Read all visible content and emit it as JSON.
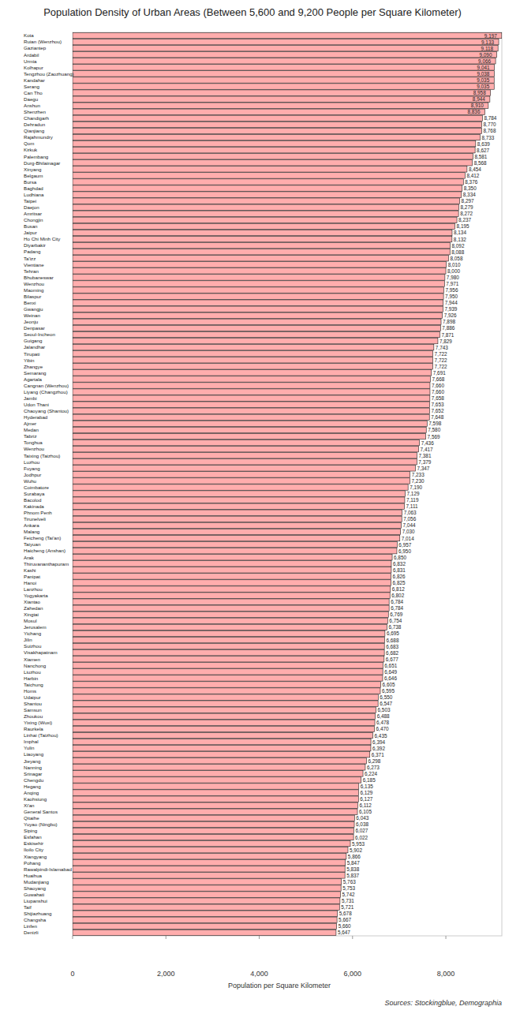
{
  "chart_data": {
    "type": "bar",
    "orientation": "horizontal",
    "title": "Population Density of Urban Areas (Between 5,600 and 9,200 People per Square Kilometer)",
    "x_label": "Population per Square Kilometer",
    "source": "Sources: Stockingblue, Demographia",
    "color": "#ffadad",
    "grid": false,
    "data_labels": true,
    "xlim": [
      0,
      9200
    ],
    "xticks": [
      0,
      {
        "value": 2000,
        "label": "2,000"
      },
      {
        "value": 4000,
        "label": "4,000"
      },
      {
        "value": 6000,
        "label": "6,000"
      },
      {
        "value": 8000,
        "label": "8,000"
      }
    ],
    "categories": [
      "Kota",
      "Ruian (Wenzhou)",
      "Gaziantep",
      "Ardabil",
      "Urmia",
      "Kolhapur",
      "Tengzhou (Zaozhuang)",
      "Kandahar",
      "Serang",
      "Can Tho",
      "Daegu",
      "Anshun",
      "Shenzhen",
      "Chandigarh",
      "Dehradun",
      "Qianjiang",
      "Rajahmundry",
      "Qom",
      "Kirkuk",
      "Palembang",
      "Durg-Bhilainagar",
      "Xinyang",
      "Belgaum",
      "Bursa",
      "Baghdad",
      "Ludhiana",
      "Taipei",
      "Daejon",
      "Amritsar",
      "Chongjin",
      "Busan",
      "Jaipur",
      "Ho Chi Minh City",
      "Diyarbakir",
      "Padang",
      "Ta'izz",
      "Vientiane",
      "Tehran",
      "Bhubaneswar",
      "Wenzhou",
      "Maoming",
      "Bilaspur",
      "Benxi",
      "Gwangju",
      "Weinan",
      "Jeonju",
      "Denpasar",
      "Seoul-Incheon",
      "Guigang",
      "Jalandhar",
      "Tirupati",
      "Yibin",
      "Zhangye",
      "Semarang",
      "Agartala",
      "Cangnan (Wenzhou)",
      "Liyang (Changzhou)",
      "Jambi",
      "Udon Thani",
      "Chaoyang (Shantou)",
      "Hyderabad",
      "Ajmer",
      "Medan",
      "Tabriz",
      "Tonghua",
      "Wenzhou",
      "Taixing (Taizhou)",
      "Luzhou",
      "Fuyang",
      "Jodhpur",
      "Wuhu",
      "Coimbatore",
      "Surabaya",
      "Bacolod",
      "Kakinada",
      "Phnom Penh",
      "Tirunelveli",
      "Ankara",
      "Malang",
      "Feicheng (Tai'an)",
      "Taiyuan",
      "Haicheng (Anshan)",
      "Arak",
      "Thiruvananthapuram",
      "Kashi",
      "Panipat",
      "Hanoi",
      "Lanzhou",
      "Yogyakarta",
      "Xiantao",
      "Zahedan",
      "Xingtai",
      "Mosul",
      "Jerusalem",
      "Yichang",
      "Jilin",
      "Suizhou",
      "Visakhapatnam",
      "Xiamen",
      "Nanchong",
      "Liuzhou",
      "Harbin",
      "Taichung",
      "Homs",
      "Udaipur",
      "Shantou",
      "Samsun",
      "Zhoukou",
      "Yixing (Wuxi)",
      "Raurkela",
      "Linhai (Taizhou)",
      "Imphal",
      "Yulin",
      "Liaoyang",
      "Jieyang",
      "Nanning",
      "Srinagar",
      "Chengdu",
      "Hegang",
      "Anqing",
      "Kaohsiung",
      "Xi'an",
      "General Santos",
      "Qitaihe",
      "Yuyao (Ningbo)",
      "Siping",
      "Esfahan",
      "Eskisehir",
      "Iloilo City",
      "Xiangyang",
      "Pohang",
      "Rawalpindi-Islamabad",
      "Huaihua",
      "Mudanjiang",
      "Shaoyang",
      "Guwahati",
      "Liupanshui",
      "Taif",
      "Shijiazhuang",
      "Changsha",
      "Linfen",
      "Denizli"
    ],
    "values": [
      9197,
      9133,
      9118,
      9090,
      9066,
      9041,
      9038,
      9035,
      9035,
      8958,
      8944,
      8910,
      8836,
      8784,
      8770,
      8768,
      8733,
      8639,
      8627,
      8581,
      8568,
      8454,
      8412,
      8376,
      8350,
      8334,
      8297,
      8279,
      8272,
      8237,
      8195,
      8134,
      8132,
      8092,
      8088,
      8058,
      8010,
      8000,
      7980,
      7971,
      7956,
      7950,
      7944,
      7939,
      7926,
      7898,
      7886,
      7871,
      7829,
      7743,
      7722,
      7722,
      7722,
      7691,
      7668,
      7660,
      7660,
      7658,
      7653,
      7652,
      7648,
      7598,
      7580,
      7569,
      7436,
      7417,
      7381,
      7379,
      7347,
      7233,
      7230,
      7190,
      7129,
      7119,
      7111,
      7063,
      7056,
      7044,
      7030,
      7014,
      6957,
      6950,
      6850,
      6832,
      6831,
      6826,
      6825,
      6812,
      6802,
      6784,
      6784,
      6769,
      6754,
      6738,
      6695,
      6688,
      6683,
      6682,
      6677,
      6651,
      6649,
      6646,
      6605,
      6595,
      6550,
      6547,
      6503,
      6488,
      6478,
      6470,
      6435,
      6394,
      6392,
      6371,
      6298,
      6273,
      6224,
      6185,
      6135,
      6129,
      6127,
      6112,
      6105,
      6043,
      6038,
      6027,
      6022,
      5953,
      5902,
      5866,
      5847,
      5838,
      5837,
      5763,
      5753,
      5742,
      5731,
      5721,
      5678,
      5667,
      5660,
      5647
    ],
    "value_labels": [
      "9,197",
      "9,133",
      "9,118",
      "9,090",
      "9,066",
      "9,041",
      "9,038",
      "9,035",
      "9,035",
      "8,958",
      "8,944",
      "8,910",
      "8,836",
      "8,784",
      "8,770",
      "8,768",
      "8,733",
      "8,639",
      "8,627",
      "8,581",
      "8,568",
      "8,454",
      "8,412",
      "8,376",
      "8,350",
      "8,334",
      "8,297",
      "8,279",
      "8,272",
      "8,237",
      "8,195",
      "8,134",
      "8,132",
      "8,092",
      "8,088",
      "8,058",
      "8,010",
      "8,000",
      "7,980",
      "7,971",
      "7,956",
      "7,950",
      "7,944",
      "7,939",
      "7,926",
      "7,898",
      "7,886",
      "7,871",
      "7,829",
      "7,743",
      "7,722",
      "7,722",
      "7,722",
      "7,691",
      "7,668",
      "7,660",
      "7,660",
      "7,658",
      "7,653",
      "7,652",
      "7,648",
      "7,598",
      "7,580",
      "7,569",
      "7,436",
      "7,417",
      "7,381",
      "7,379",
      "7,347",
      "7,233",
      "7,230",
      "7,190",
      "7,129",
      "7,119",
      "7,111",
      "7,063",
      "7,056",
      "7,044",
      "7,030",
      "7,014",
      "6,957",
      "6,950",
      "6,850",
      "6,832",
      "6,831",
      "6,826",
      "6,825",
      "6,812",
      "6,802",
      "6,784",
      "6,784",
      "6,769",
      "6,754",
      "6,738",
      "6,695",
      "6,688",
      "6,683",
      "6,682",
      "6,677",
      "6,651",
      "6,649",
      "6,646",
      "6,605",
      "6,595",
      "6,550",
      "6,547",
      "6,503",
      "6,488",
      "6,478",
      "6,470",
      "6,435",
      "6,394",
      "6,392",
      "6,371",
      "6,298",
      "6,273",
      "6,224",
      "6,185",
      "6,135",
      "6,129",
      "6,127",
      "6,112",
      "6,105",
      "6,043",
      "6,038",
      "6,027",
      "6,022",
      "5,953",
      "5,902",
      "5,866",
      "5,847",
      "5,838",
      "5,837",
      "5,763",
      "5,753",
      "5,742",
      "5,731",
      "5,721",
      "5,678",
      "5,667",
      "5,660",
      "5,647"
    ]
  }
}
